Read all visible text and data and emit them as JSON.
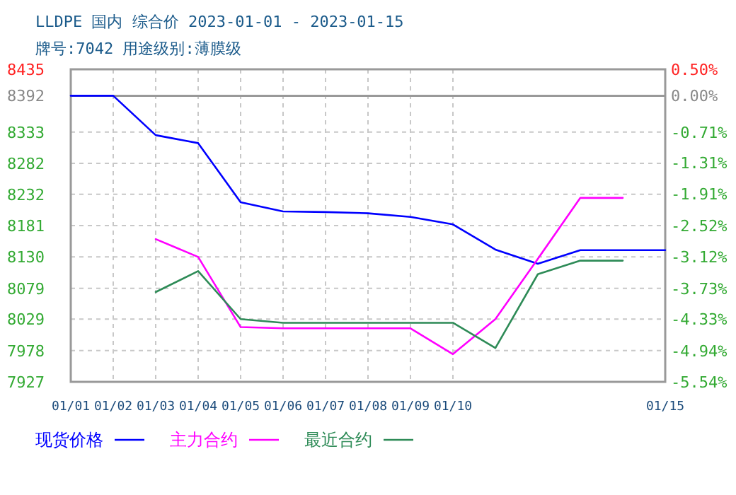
{
  "chart_data": {
    "type": "line",
    "title": "LLDPE 国内 综合价 2023-01-01 - 2023-01-15",
    "subtitle": "牌号:7042 用途级别:薄膜级",
    "x": [
      "--01-01",
      "--01-02",
      "--01-03",
      "--01-04",
      "--01-05",
      "--01-06",
      "--01-07",
      "--01-08",
      "--01-09",
      "--01-10",
      "--01-11",
      "--01-12",
      "--01-13",
      "--01-14",
      "--01-15"
    ],
    "series": [
      {
        "name": "现货价格",
        "color": "#0000ff",
        "values": [
          8392,
          8392,
          8328,
          8315,
          8219,
          8204,
          8203,
          8201,
          8195,
          8183,
          8142,
          8119,
          8141,
          8141,
          8141
        ]
      },
      {
        "name": "主力合约",
        "color": "#ff00ff",
        "values": [
          null,
          null,
          8159,
          8130,
          8016,
          8014,
          8014,
          8014,
          8014,
          7972,
          8029,
          8127,
          8226,
          8226,
          null
        ]
      },
      {
        "name": "最近合约",
        "color": "#2e8b57",
        "values": [
          null,
          null,
          8073,
          8107,
          8029,
          8023,
          8023,
          8023,
          8023,
          8023,
          7982,
          8102,
          8124,
          8124,
          null
        ]
      }
    ],
    "xlim": [
      "--01-01",
      "--01-15"
    ],
    "xticks": [
      {
        "value": "--01-01",
        "label": "01/01"
      },
      {
        "value": "--01-02",
        "label": "01/02"
      },
      {
        "value": "--01-03",
        "label": "01/03"
      },
      {
        "value": "--01-04",
        "label": "01/04"
      },
      {
        "value": "--01-05",
        "label": "01/05"
      },
      {
        "value": "--01-06",
        "label": "01/06"
      },
      {
        "value": "--01-07",
        "label": "01/07"
      },
      {
        "value": "--01-08",
        "label": "01/08"
      },
      {
        "value": "--01-09",
        "label": "01/09"
      },
      {
        "value": "--01-10",
        "label": "01/10"
      },
      {
        "value": "--01-15",
        "label": "01/15"
      }
    ],
    "ylim": [
      7927,
      8435
    ],
    "yticks": [
      8435,
      8392,
      8333,
      8282,
      8232,
      8181,
      8130,
      8079,
      8029,
      7978,
      7927
    ],
    "y2lim": [
      -5.54,
      0.5
    ],
    "y2ticks": [
      {
        "value": 0.5,
        "label": "0.50%"
      },
      {
        "value": 0,
        "label": "0.00%"
      },
      {
        "value": -0.71,
        "label": "-0.71%"
      },
      {
        "value": -1.31,
        "label": "-1.31%"
      },
      {
        "value": -1.91,
        "label": "-1.91%"
      },
      {
        "value": -2.52,
        "label": "-2.52%"
      },
      {
        "value": -3.12,
        "label": "-3.12%"
      },
      {
        "value": -3.73,
        "label": "-3.73%"
      },
      {
        "value": -4.33,
        "label": "-4.33%"
      },
      {
        "value": -4.94,
        "label": "-4.94%"
      },
      {
        "value": -5.54,
        "label": "-5.54%"
      }
    ],
    "ref_lines": [
      {
        "axis": "y",
        "value": 8392,
        "color": "#999999",
        "line_style": "solid"
      }
    ],
    "grid": true,
    "legend": "bottom",
    "marker": "none",
    "line_style": "solid"
  }
}
